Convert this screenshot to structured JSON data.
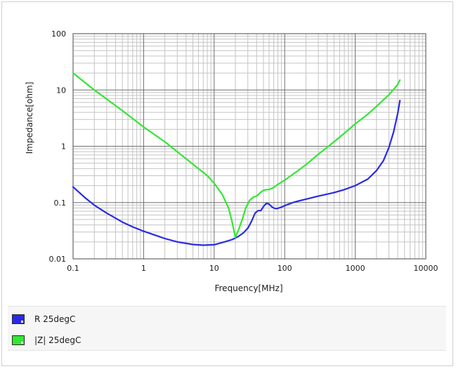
{
  "chart_data": {
    "type": "line",
    "title": "",
    "xlabel": "Frequency[MHz]",
    "ylabel": "Impedance[ohm]",
    "xscale": "log",
    "yscale": "log",
    "xlim": [
      0.1,
      10000
    ],
    "ylim": [
      0.01,
      100
    ],
    "x_tick_labels": [
      "0.1",
      "1",
      "10",
      "100",
      "1000",
      "10000"
    ],
    "y_tick_labels": [
      "0.01",
      "0.1",
      "1",
      "10",
      "100"
    ],
    "grid": true,
    "legend_position": "bottom",
    "series": [
      {
        "name": "R 25degC",
        "color": "#2a2ae6",
        "x": [
          0.1,
          0.15,
          0.2,
          0.3,
          0.5,
          0.7,
          1,
          1.5,
          2,
          3,
          5,
          7,
          10,
          14,
          18,
          22,
          26,
          30,
          34,
          38,
          42,
          46,
          50,
          55,
          60,
          65,
          70,
          75,
          80,
          90,
          100,
          130,
          150,
          200,
          300,
          500,
          700,
          1000,
          1500,
          2000,
          2500,
          3000,
          3500,
          4000,
          4300
        ],
        "y": [
          0.19,
          0.12,
          0.09,
          0.065,
          0.045,
          0.037,
          0.031,
          0.026,
          0.023,
          0.02,
          0.018,
          0.0175,
          0.0178,
          0.02,
          0.022,
          0.025,
          0.029,
          0.035,
          0.047,
          0.065,
          0.072,
          0.072,
          0.085,
          0.097,
          0.094,
          0.085,
          0.08,
          0.078,
          0.079,
          0.083,
          0.088,
          0.1,
          0.105,
          0.115,
          0.13,
          0.15,
          0.17,
          0.2,
          0.26,
          0.37,
          0.55,
          0.95,
          1.8,
          3.8,
          6.5
        ]
      },
      {
        "name": "|Z| 25degC",
        "color": "#33e633",
        "x": [
          0.1,
          0.2,
          0.5,
          1,
          2,
          5,
          8,
          10,
          13,
          16,
          18,
          20,
          22,
          25,
          28,
          32,
          36,
          40,
          45,
          50,
          55,
          60,
          70,
          80,
          90,
          100,
          150,
          200,
          300,
          500,
          700,
          1000,
          1500,
          2000,
          3000,
          4000,
          4300
        ],
        "y": [
          20,
          10,
          4.3,
          2.2,
          1.2,
          0.48,
          0.3,
          0.22,
          0.14,
          0.08,
          0.045,
          0.024,
          0.032,
          0.05,
          0.08,
          0.11,
          0.125,
          0.13,
          0.15,
          0.165,
          0.17,
          0.17,
          0.185,
          0.21,
          0.23,
          0.25,
          0.36,
          0.47,
          0.72,
          1.2,
          1.7,
          2.5,
          3.7,
          5.1,
          8.2,
          12.5,
          15
        ]
      }
    ]
  },
  "legend": {
    "items": [
      {
        "label": "R 25degC",
        "color": "#2a2ae6"
      },
      {
        "label": "|Z| 25degC",
        "color": "#33e633"
      }
    ]
  }
}
